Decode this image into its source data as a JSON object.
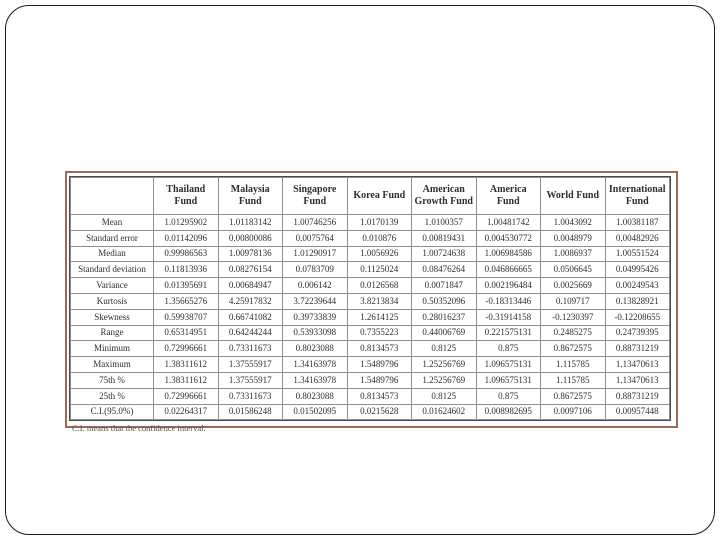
{
  "slide": {
    "background_color": "#ffffff",
    "frame_border_color": "#1a1a1a",
    "panel_border_color": "#9a6b57"
  },
  "chart_data": {
    "type": "table",
    "title": "",
    "columns": [
      "",
      "Thailand Fund",
      "Malaysia Fund",
      "Singapore Fund",
      "Korea Fund",
      "American Growth Fund",
      "America Fund",
      "World Fund",
      "International Fund"
    ],
    "rows": [
      {
        "label": "Mean",
        "values": [
          "1.01295902",
          "1.01183142",
          "1.00746256",
          "1.0170139",
          "1.0100357",
          "1.00481742",
          "1.0043092",
          "1.00381187"
        ]
      },
      {
        "label": "Standard error",
        "values": [
          "0.01142096",
          "0.00800086",
          "0.0075764",
          "0.010876",
          "0.00819431",
          "0.004530772",
          "0.0048979",
          "0.00482926"
        ]
      },
      {
        "label": "Median",
        "values": [
          "0.99986563",
          "1.00978136",
          "1.01290917",
          "1.0056926",
          "1.00724638",
          "1.006984586",
          "1.0086937",
          "1.00551524"
        ]
      },
      {
        "label": "Standard deviation",
        "values": [
          "0.11813936",
          "0.08276154",
          "0.0783709",
          "0.1125024",
          "0.08476264",
          "0.046866665",
          "0.0506645",
          "0.04995426"
        ]
      },
      {
        "label": "Variance",
        "values": [
          "0.01395691",
          "0.00684947",
          "0.006142",
          "0.0126568",
          "0.0071847",
          "0.002196484",
          "0.0025669",
          "0.00249543"
        ]
      },
      {
        "label": "Kurtosis",
        "values": [
          "1.35665276",
          "4.25917832",
          "3.72239644",
          "3.8213834",
          "0.50352096",
          "-0.18313446",
          "0.109717",
          "0.13828921"
        ]
      },
      {
        "label": "Skewness",
        "values": [
          "0.59938707",
          "0.66741082",
          "0.39733839",
          "1.2614125",
          "0.28016237",
          "-0.31914158",
          "-0.1230397",
          "-0.12208655"
        ]
      },
      {
        "label": "Range",
        "values": [
          "0.65314951",
          "0.64244244",
          "0.53933098",
          "0.7355223",
          "0.44006769",
          "0.221575131",
          "0.2485275",
          "0.24739395"
        ]
      },
      {
        "label": "Minimum",
        "values": [
          "0.72996661",
          "0.73311673",
          "0.8023088",
          "0.8134573",
          "0.8125",
          "0.875",
          "0.8672575",
          "0.88731219"
        ]
      },
      {
        "label": "Maximum",
        "values": [
          "1.38311612",
          "1.37555917",
          "1.34163978",
          "1.5489796",
          "1.25256769",
          "1.096575131",
          "1.115785",
          "1.13470613"
        ]
      },
      {
        "label": "75th %",
        "values": [
          "1.38311612",
          "1.37555917",
          "1.34163978",
          "1.5489796",
          "1.25256769",
          "1.096575131",
          "1.115785",
          "1.13470613"
        ]
      },
      {
        "label": "25th %",
        "values": [
          "0.72996661",
          "0.73311673",
          "0.8023088",
          "0.8134573",
          "0.8125",
          "0.875",
          "0.8672575",
          "0.88731219"
        ]
      },
      {
        "label": "C.I.(95.0%)",
        "values": [
          "0.02264317",
          "0.01586248",
          "0.01502095",
          "0.0215628",
          "0.01624602",
          "0.008982695",
          "0.0097106",
          "0.00957448"
        ]
      }
    ],
    "footnote": "C.I. means that the confidence interval."
  }
}
